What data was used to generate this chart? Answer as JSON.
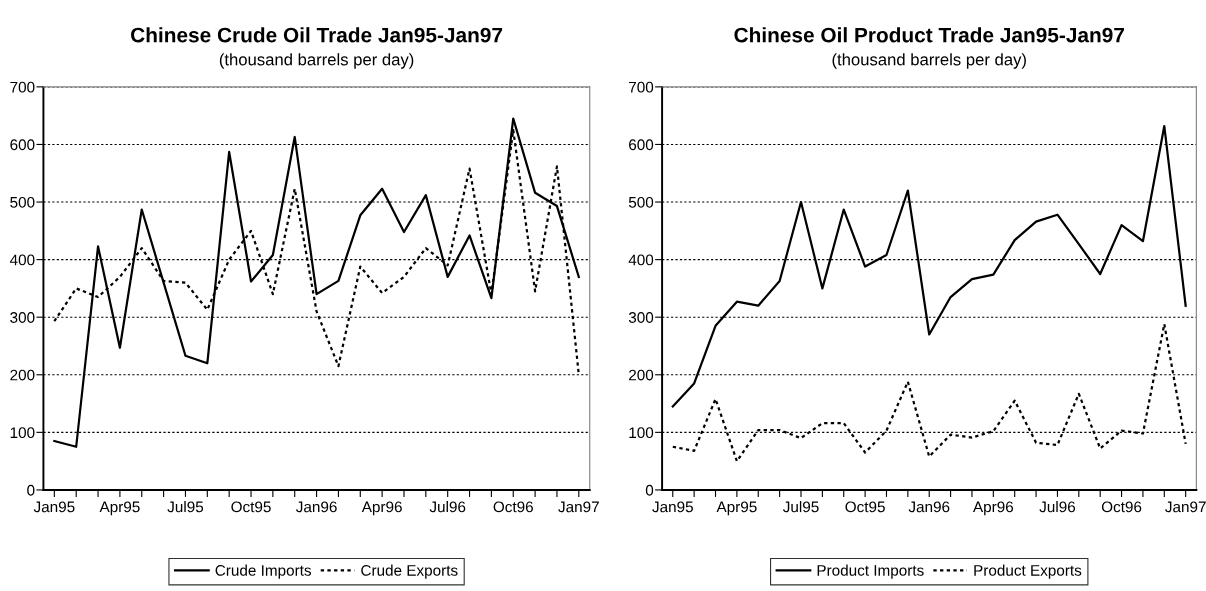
{
  "chart_data": [
    {
      "type": "line",
      "title": "Chinese Crude Oil Trade Jan95-Jan97",
      "subtitle": "(thousand barrels per day)",
      "categories": [
        "Jan95",
        null,
        null,
        "Apr95",
        null,
        null,
        "Jul95",
        null,
        null,
        "Oct95",
        null,
        null,
        "Jan96",
        null,
        null,
        "Apr96",
        null,
        null,
        "Jul96",
        null,
        null,
        "Oct96",
        null,
        null,
        "Jan97"
      ],
      "series": [
        {
          "name": "Crude Imports",
          "color": "#000000",
          "line_style": "solid",
          "values": [
            85,
            75,
            423,
            247,
            487,
            360,
            233,
            220,
            587,
            362,
            408,
            613,
            340,
            363,
            477,
            523,
            448,
            512,
            370,
            442,
            333,
            645,
            516,
            493,
            370
          ]
        },
        {
          "name": "Crude Exports",
          "color": "#000000",
          "line_style": "dotted",
          "values": [
            293,
            350,
            335,
            370,
            420,
            363,
            360,
            313,
            400,
            450,
            340,
            523,
            310,
            215,
            388,
            342,
            370,
            420,
            390,
            558,
            340,
            625,
            345,
            562,
            200
          ]
        }
      ],
      "ylim": [
        0,
        700
      ],
      "yticks": [
        0,
        100,
        200,
        300,
        400,
        500,
        600,
        700
      ],
      "grid": "y",
      "legend": "bottom",
      "marker": "none"
    },
    {
      "type": "line",
      "title": "Chinese Oil Product Trade Jan95-Jan97",
      "subtitle": "(thousand barrels per day)",
      "categories": [
        "Jan95",
        null,
        null,
        "Apr95",
        null,
        null,
        "Jul95",
        null,
        null,
        "Oct95",
        null,
        null,
        "Jan96",
        null,
        null,
        "Apr96",
        null,
        null,
        "Jul96",
        null,
        null,
        "Oct96",
        null,
        null,
        "Jan97"
      ],
      "series": [
        {
          "name": "Product Imports",
          "color": "#000000",
          "line_style": "solid",
          "values": [
            145,
            185,
            285,
            327,
            320,
            363,
            500,
            350,
            487,
            388,
            408,
            520,
            270,
            335,
            366,
            374,
            434,
            466,
            478,
            427,
            375,
            460,
            432,
            632,
            320
          ]
        },
        {
          "name": "Product Exports",
          "color": "#000000",
          "line_style": "dotted",
          "values": [
            75,
            68,
            158,
            50,
            104,
            104,
            90,
            116,
            116,
            65,
            103,
            188,
            58,
            96,
            91,
            102,
            155,
            82,
            78,
            167,
            72,
            103,
            98,
            288,
            80
          ]
        }
      ],
      "ylim": [
        0,
        700
      ],
      "yticks": [
        0,
        100,
        200,
        300,
        400,
        500,
        600,
        700
      ],
      "grid": "y",
      "legend": "bottom",
      "marker": "none"
    }
  ]
}
